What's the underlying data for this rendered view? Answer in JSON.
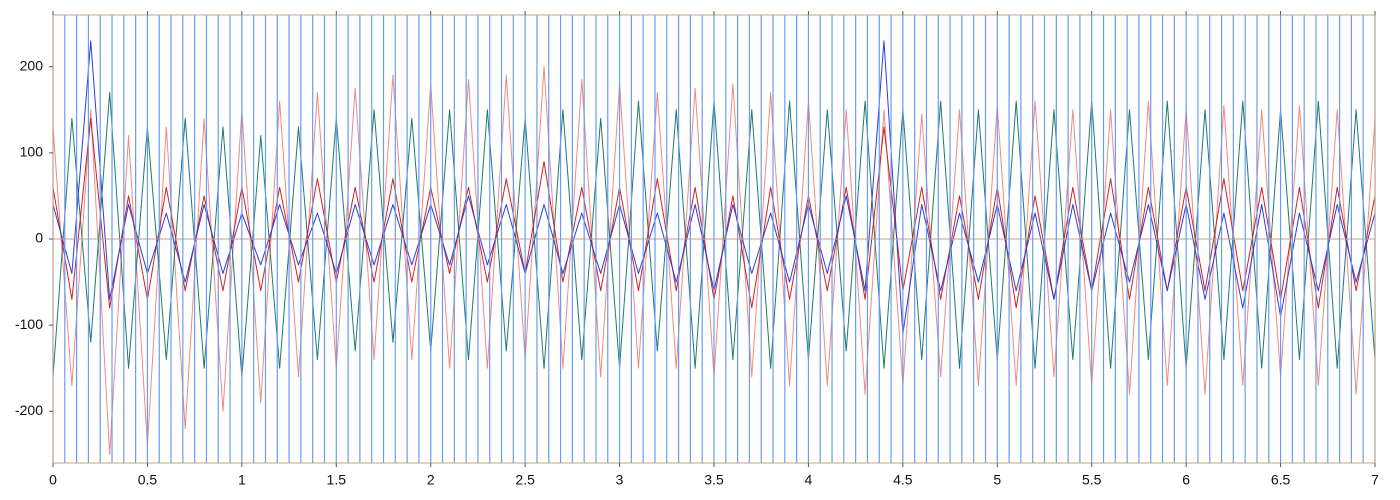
{
  "chart_data": {
    "type": "line",
    "x": [
      0,
      0.1,
      0.2,
      0.3,
      0.4,
      0.5,
      0.6,
      0.7,
      0.8,
      0.9,
      1,
      1.1,
      1.2,
      1.3,
      1.4,
      1.5,
      1.6,
      1.7,
      1.8,
      1.9,
      2,
      2.1,
      2.2,
      2.3,
      2.4,
      2.5,
      2.6,
      2.7,
      2.8,
      2.9,
      3,
      3.1,
      3.2,
      3.3,
      3.4,
      3.5,
      3.6,
      3.7,
      3.8,
      3.9,
      4,
      4.1,
      4.2,
      4.3,
      4.4,
      4.5,
      4.6,
      4.7,
      4.8,
      4.9,
      5,
      5.1,
      5.2,
      5.3,
      5.4,
      5.5,
      5.6,
      5.7,
      5.8,
      5.9,
      6,
      6.1,
      6.2,
      6.3,
      6.4,
      6.5,
      6.6,
      6.7,
      6.8,
      6.9,
      7
    ],
    "series": [
      {
        "color": "#f08a84",
        "values": [
          130,
          -170,
          150,
          -250,
          120,
          -240,
          130,
          -220,
          140,
          -200,
          150,
          -190,
          160,
          -160,
          170,
          -150,
          175,
          -140,
          190,
          -140,
          180,
          -150,
          185,
          -150,
          190,
          -140,
          200,
          -150,
          185,
          -160,
          180,
          -150,
          170,
          -150,
          175,
          -160,
          180,
          -160,
          170,
          -170,
          160,
          -170,
          150,
          -180,
          150,
          -170,
          145,
          -160,
          150,
          -170,
          155,
          -170,
          160,
          -160,
          150,
          -170,
          150,
          -180,
          160,
          -170,
          150,
          -180,
          155,
          -170,
          150,
          -160,
          155,
          -170,
          150,
          -180,
          140
        ]
      },
      {
        "color": "#1f7a6e",
        "values": [
          -160,
          140,
          -120,
          170,
          -150,
          130,
          -140,
          140,
          -150,
          130,
          -160,
          120,
          -150,
          130,
          -140,
          140,
          -130,
          150,
          -120,
          140,
          -130,
          150,
          -140,
          150,
          -130,
          140,
          -150,
          150,
          -140,
          140,
          -150,
          160,
          -130,
          150,
          -150,
          160,
          -140,
          150,
          -150,
          160,
          -140,
          150,
          -130,
          160,
          -150,
          150,
          -140,
          160,
          -150,
          150,
          -140,
          160,
          -150,
          150,
          -140,
          160,
          -150,
          150,
          -140,
          160,
          -150,
          150,
          -140,
          160,
          -150,
          150,
          -140,
          160,
          -150,
          150,
          -140
        ]
      },
      {
        "color": "#d42020",
        "values": [
          60,
          -70,
          140,
          -80,
          50,
          -70,
          60,
          -60,
          50,
          -60,
          60,
          -60,
          60,
          -50,
          70,
          -50,
          60,
          -50,
          70,
          -50,
          60,
          -40,
          60,
          -50,
          70,
          -40,
          90,
          -50,
          60,
          -60,
          60,
          -60,
          70,
          -60,
          60,
          -70,
          50,
          -80,
          60,
          -70,
          50,
          -60,
          60,
          -70,
          130,
          -60,
          60,
          -70,
          50,
          -70,
          60,
          -80,
          50,
          -70,
          60,
          -60,
          70,
          -70,
          60,
          -60,
          60,
          -60,
          70,
          -60,
          60,
          -70,
          60,
          -80,
          60,
          -60,
          50
        ]
      },
      {
        "color": "#2b3ee0",
        "values": [
          40,
          -40,
          230,
          -70,
          40,
          -40,
          30,
          -50,
          40,
          -40,
          30,
          -30,
          40,
          -30,
          30,
          -40,
          40,
          -30,
          40,
          -30,
          40,
          -30,
          50,
          -30,
          40,
          -40,
          40,
          -40,
          30,
          -40,
          40,
          -40,
          30,
          -50,
          40,
          -60,
          40,
          -40,
          30,
          -50,
          40,
          -40,
          50,
          -60,
          230,
          -110,
          40,
          -60,
          30,
          -50,
          40,
          -60,
          30,
          -70,
          40,
          -60,
          30,
          -50,
          40,
          -60,
          40,
          -70,
          30,
          -80,
          40,
          -90,
          30,
          -60,
          40,
          -50,
          30
        ]
      }
    ],
    "markers": {
      "color": "#6a9cf0",
      "x": [
        0,
        0.0625,
        0.125,
        0.1875,
        0.25,
        0.3125,
        0.375,
        0.4375,
        0.5,
        0.5625,
        0.625,
        0.6875,
        0.75,
        0.8125,
        0.875,
        0.9375,
        1,
        1.0625,
        1.125,
        1.1875,
        1.25,
        1.3125,
        1.375,
        1.4375,
        1.5,
        1.5625,
        1.625,
        1.6875,
        1.75,
        1.8125,
        1.875,
        1.9375,
        2,
        2.0625,
        2.125,
        2.1875,
        2.25,
        2.3125,
        2.375,
        2.4375,
        2.5,
        2.5625,
        2.625,
        2.6875,
        2.75,
        2.8125,
        2.875,
        2.9375,
        3,
        3.0625,
        3.125,
        3.1875,
        3.25,
        3.3125,
        3.375,
        3.4375,
        3.5,
        3.5625,
        3.625,
        3.6875,
        3.75,
        3.8125,
        3.875,
        3.9375,
        4,
        4.0625,
        4.125,
        4.1875,
        4.25,
        4.3125,
        4.375,
        4.4375,
        4.5,
        4.5625,
        4.625,
        4.6875,
        4.75,
        4.8125,
        4.875,
        4.9375,
        5,
        5.0625,
        5.125,
        5.1875,
        5.25,
        5.3125,
        5.375,
        5.4375,
        5.5,
        5.5625,
        5.625,
        5.6875,
        5.75,
        5.8125,
        5.875,
        5.9375,
        6,
        6.0625,
        6.125,
        6.1875,
        6.25,
        6.3125,
        6.375,
        6.4375,
        6.5,
        6.5625,
        6.625,
        6.6875,
        6.75,
        6.8125,
        6.875,
        6.9375,
        7
      ]
    },
    "xlim": [
      0,
      7
    ],
    "xticks": [
      0,
      0.5,
      1,
      1.5,
      2,
      2.5,
      3,
      3.5,
      4,
      4.5,
      5,
      5.5,
      6,
      6.5,
      7
    ],
    "ylim": [
      -260,
      260
    ],
    "yticks": [
      -200,
      -100,
      0,
      100,
      200
    ],
    "zero_line": true,
    "frame_color": "#c9a27c"
  }
}
